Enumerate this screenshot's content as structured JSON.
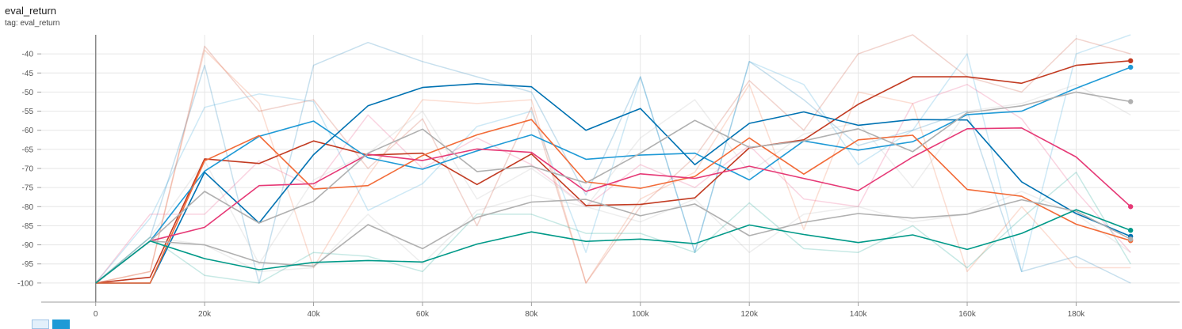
{
  "header": {
    "title": "eval_return",
    "tag": "tag: eval_return"
  },
  "chart_data": {
    "type": "line",
    "title": "eval_return",
    "xlabel": "",
    "ylabel": "",
    "xlim": [
      -10000,
      199000
    ],
    "ylim": [
      -105,
      -35
    ],
    "grid": true,
    "x_ticks": [
      0,
      20000,
      40000,
      60000,
      80000,
      100000,
      120000,
      140000,
      160000,
      180000
    ],
    "x_tick_labels": [
      "0",
      "20k",
      "40k",
      "60k",
      "80k",
      "100k",
      "120k",
      "140k",
      "160k",
      "180k"
    ],
    "y_ticks": [
      -40,
      -45,
      -50,
      -55,
      -60,
      -65,
      -70,
      -75,
      -80,
      -85,
      -90,
      -95,
      -100
    ],
    "y_tick_labels": [
      "-40",
      "-45",
      "-50",
      "-55",
      "-60",
      "-65",
      "-70",
      "-75",
      "-80",
      "-85",
      "-90",
      "-95",
      "-100"
    ],
    "x": [
      0,
      10000,
      20000,
      30000,
      40000,
      50000,
      60000,
      70000,
      80000,
      90000,
      100000,
      110000,
      120000,
      130000,
      140000,
      150000,
      160000,
      170000,
      180000,
      190000
    ],
    "series": [
      {
        "color": "#c23b22",
        "values": [
          -100,
          -98.5,
          -67.5,
          -68.7,
          -62.8,
          -66.5,
          -66,
          -74.2,
          -66.2,
          -79.7,
          -79.4,
          -77.7,
          -64.6,
          -62.5,
          -53.2,
          -46,
          -46,
          -47.7,
          -43,
          -41.8
        ],
        "raw": [
          -100,
          -97,
          -38,
          -55,
          -52,
          -70,
          -57,
          -85,
          -54,
          -100,
          -80,
          -67,
          -47,
          -60,
          -40,
          -35,
          -46,
          -50,
          -36,
          -40
        ]
      },
      {
        "color": "#1f9ad6",
        "values": [
          -100,
          -89,
          -70.7,
          -61.6,
          -57.6,
          -67.2,
          -70.2,
          -65.4,
          -61.2,
          -67.6,
          -66.5,
          -66,
          -73,
          -62.8,
          -65.2,
          -63,
          -55.9,
          -55,
          -49,
          -43.5
        ],
        "raw": [
          -100,
          -83,
          -54,
          -50.5,
          -52.5,
          -81,
          -74,
          -59,
          -55,
          -92,
          -46,
          -92,
          -42,
          -48,
          -69,
          -60,
          -40,
          -97,
          -40,
          -35
        ]
      },
      {
        "color": "#0072b2",
        "values": [
          -100,
          -100,
          -71,
          -84.3,
          -66.4,
          -53.6,
          -48.8,
          -47.8,
          -48.6,
          -60,
          -54.3,
          -69,
          -58.2,
          -55.2,
          -58.7,
          -57.2,
          -57.3,
          -73.5,
          -81.8,
          -87.8
        ],
        "raw": [
          -100,
          -88,
          -43,
          -100,
          -43,
          -37,
          -42,
          -46,
          -50,
          -77,
          -46,
          -92,
          -42,
          -52,
          -64,
          -60,
          -55,
          -97,
          -93,
          -100
        ]
      },
      {
        "color": "#f26b38",
        "values": [
          -100,
          -100,
          -68,
          -61.4,
          -75.4,
          -74.5,
          -66.6,
          -61.2,
          -57.2,
          -73.5,
          -75.2,
          -72.1,
          -62,
          -71.5,
          -62.5,
          -61.3,
          -75.5,
          -77.3,
          -84.6,
          -88.9
        ],
        "raw": [
          -100,
          -97,
          -39,
          -53,
          -96,
          -72,
          -52,
          -53,
          -52,
          -100,
          -78,
          -71,
          -48,
          -86,
          -50,
          -53,
          -97,
          -80,
          -96,
          -96
        ]
      },
      {
        "color": "#e63976",
        "values": [
          -100,
          -89,
          -85.4,
          -74.5,
          -74,
          -66.3,
          -67.9,
          -64.9,
          -65.8,
          -76,
          -71.4,
          -72.6,
          -69.4,
          -72.6,
          -75.8,
          -67,
          -59.6,
          -59.4,
          -67,
          -80
        ],
        "raw": [
          -100,
          -82,
          -82,
          -68,
          -75,
          -56,
          -70,
          -62,
          -69,
          -80,
          -69,
          -75,
          -64,
          -78,
          -80,
          -53,
          -48,
          -57,
          -76,
          -92
        ]
      },
      {
        "color": "#b0b0b0",
        "values": [
          -100,
          -89,
          -76,
          -84.3,
          -78.6,
          -66,
          -59.7,
          -70.8,
          -69.4,
          -73.8,
          -66,
          -57.4,
          -64.5,
          -62.8,
          -59.6,
          -65.6,
          -55.4,
          -53.6,
          -50,
          -52.5
        ],
        "raw": [
          -100,
          -88,
          -68,
          -95,
          -73,
          -66,
          -55,
          -78,
          -70,
          -80,
          -62,
          -52,
          -71,
          -61,
          -58,
          -75,
          -55,
          -53,
          -48,
          -56
        ]
      },
      {
        "color": "#b0b0b0",
        "values": [
          -100,
          -89,
          -90,
          -94.6,
          -95.6,
          -84.7,
          -91,
          -82.8,
          -78.8,
          -78.1,
          -82.4,
          -79.3,
          -87.6,
          -84.1,
          -81.8,
          -83,
          -82,
          -78.2,
          -81.2,
          -88.5
        ],
        "raw": [
          -100,
          -88,
          -90,
          -97,
          -96,
          -82,
          -95,
          -81,
          -77,
          -80,
          -84,
          -78,
          -92,
          -82,
          -80,
          -84,
          -82,
          -76,
          -82,
          -92
        ]
      },
      {
        "color": "#009988",
        "values": [
          -100,
          -89,
          -93.6,
          -96.5,
          -94.6,
          -94.1,
          -94.5,
          -89.8,
          -86.6,
          -89.1,
          -88.5,
          -89.7,
          -84.8,
          -87.3,
          -89.4,
          -87.4,
          -91.2,
          -87,
          -80.8,
          -86.2
        ],
        "raw": [
          -100,
          -88,
          -98,
          -100,
          -92,
          -93,
          -97,
          -82,
          -82,
          -87,
          -87,
          -92,
          -79,
          -91,
          -92,
          -85,
          -96,
          -83,
          -71,
          -95
        ]
      }
    ]
  }
}
